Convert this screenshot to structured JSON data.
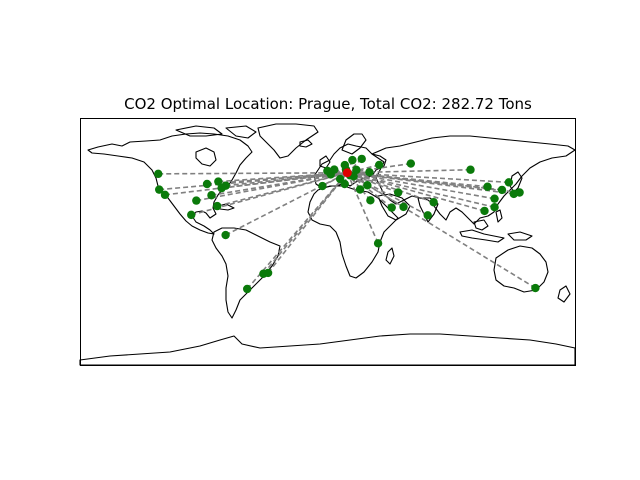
{
  "figure": {
    "title": "CO2 Optimal Location: Prague, Total CO2: 282.72 Tons"
  },
  "map": {
    "projection": "equirectangular",
    "lon_range": [
      -180,
      180
    ],
    "lat_range": [
      -90,
      90
    ],
    "coastline_color": "#000000",
    "background": "#ffffff"
  },
  "optimal_location": {
    "name": "Prague",
    "lon": 14.4,
    "lat": 50.1,
    "color": "#e00000"
  },
  "total_co2_tons": 282.72,
  "route_style": {
    "color": "#808080",
    "dash": "dashed"
  },
  "city_marker_color": "#0a7a0a",
  "cities": [
    {
      "lon": -122.4,
      "lat": 37.8
    },
    {
      "lon": -123.1,
      "lat": 49.3
    },
    {
      "lon": -118.2,
      "lat": 34.0
    },
    {
      "lon": -87.6,
      "lat": 41.9
    },
    {
      "lon": -79.4,
      "lat": 43.7
    },
    {
      "lon": -74.0,
      "lat": 40.7
    },
    {
      "lon": -77.0,
      "lat": 38.9
    },
    {
      "lon": -95.4,
      "lat": 29.8
    },
    {
      "lon": -84.4,
      "lat": 33.7
    },
    {
      "lon": -80.2,
      "lat": 25.8
    },
    {
      "lon": -99.1,
      "lat": 19.4
    },
    {
      "lon": -74.1,
      "lat": 4.7
    },
    {
      "lon": -46.6,
      "lat": -23.5
    },
    {
      "lon": -43.2,
      "lat": -22.9
    },
    {
      "lon": -58.4,
      "lat": -34.6
    },
    {
      "lon": -0.1,
      "lat": 51.5
    },
    {
      "lon": -3.7,
      "lat": 40.4
    },
    {
      "lon": 2.35,
      "lat": 48.9
    },
    {
      "lon": 4.9,
      "lat": 52.4
    },
    {
      "lon": 12.6,
      "lat": 55.7
    },
    {
      "lon": 18.1,
      "lat": 59.3
    },
    {
      "lon": 13.4,
      "lat": 52.5
    },
    {
      "lon": 16.4,
      "lat": 48.2
    },
    {
      "lon": 19.0,
      "lat": 47.5
    },
    {
      "lon": 21.0,
      "lat": 52.2
    },
    {
      "lon": 12.5,
      "lat": 41.9
    },
    {
      "lon": 9.2,
      "lat": 45.5
    },
    {
      "lon": 24.9,
      "lat": 60.2
    },
    {
      "lon": 37.6,
      "lat": 55.8
    },
    {
      "lon": 30.5,
      "lat": 50.5
    },
    {
      "lon": 23.7,
      "lat": 37.9
    },
    {
      "lon": 29.0,
      "lat": 41.0
    },
    {
      "lon": 31.2,
      "lat": 30.0
    },
    {
      "lon": 36.8,
      "lat": -1.3
    },
    {
      "lon": 46.7,
      "lat": 24.7
    },
    {
      "lon": 55.3,
      "lat": 25.2
    },
    {
      "lon": 51.4,
      "lat": 35.7
    },
    {
      "lon": 60.6,
      "lat": 56.8
    },
    {
      "lon": 77.2,
      "lat": 28.6
    },
    {
      "lon": 72.9,
      "lat": 19.1
    },
    {
      "lon": 104.0,
      "lat": 52.3
    },
    {
      "lon": 116.4,
      "lat": 39.9
    },
    {
      "lon": 121.5,
      "lat": 31.2
    },
    {
      "lon": 114.2,
      "lat": 22.3
    },
    {
      "lon": 121.5,
      "lat": 25.0
    },
    {
      "lon": 126.9,
      "lat": 37.6
    },
    {
      "lon": 139.7,
      "lat": 35.7
    },
    {
      "lon": 135.5,
      "lat": 34.7
    },
    {
      "lon": 131.9,
      "lat": 43.1
    },
    {
      "lon": 151.2,
      "lat": -33.9
    }
  ]
}
